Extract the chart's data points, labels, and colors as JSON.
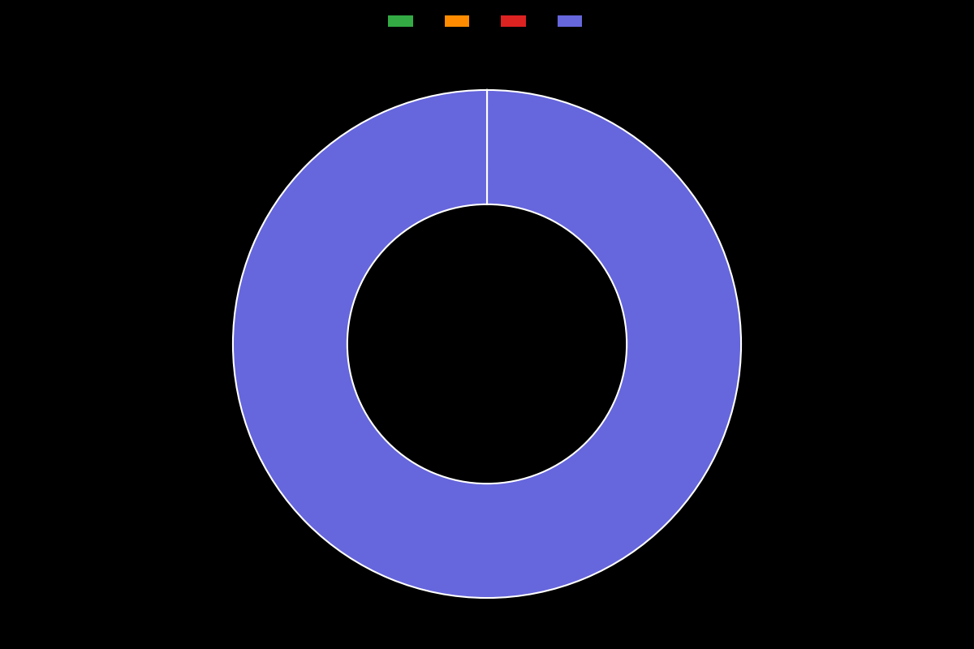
{
  "slices": [
    0.001,
    0.001,
    0.001,
    99.997
  ],
  "colors": [
    "#33aa44",
    "#ff8c00",
    "#dd2222",
    "#6666dd"
  ],
  "legend_labels": [
    "",
    "",
    "",
    ""
  ],
  "background_color": "#000000",
  "wedge_edge_color": "#ffffff",
  "wedge_linewidth": 1.5,
  "donut_width": 0.45,
  "figsize": [
    12,
    8
  ],
  "dpi": 100
}
